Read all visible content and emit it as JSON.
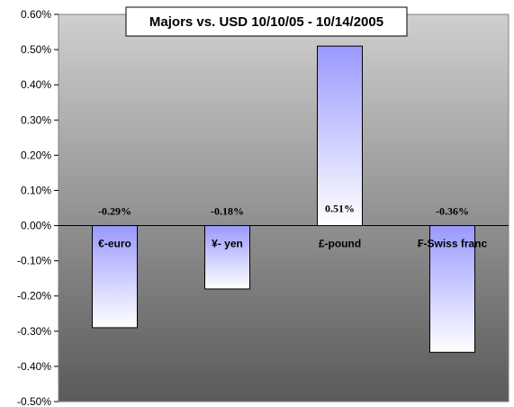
{
  "chart_data": {
    "type": "bar",
    "title": "Majors vs. USD 10/10/05 - 10/14/2005",
    "categories": [
      "€-euro",
      "¥- yen",
      "£-pound",
      "₣-Swiss franc"
    ],
    "values": [
      -0.29,
      -0.18,
      0.51,
      -0.36
    ],
    "data_labels": [
      "-0.29%",
      "-0.18%",
      "0.51%",
      "-0.36%"
    ],
    "ylim": [
      -0.5,
      0.6
    ],
    "yticks": [
      0.6,
      0.5,
      0.4,
      0.3,
      0.2,
      0.1,
      0.0,
      -0.1,
      -0.2,
      -0.3,
      -0.4,
      -0.5
    ],
    "ytick_labels": [
      "0.60%",
      "0.50%",
      "0.40%",
      "0.30%",
      "0.20%",
      "0.10%",
      "0.00%",
      "-0.10%",
      "-0.20%",
      "-0.30%",
      "-0.40%",
      "-0.50%"
    ],
    "xlabel": "",
    "ylabel": "",
    "grid": false,
    "legend": "none",
    "colors": {
      "bar_top": "#9999ff",
      "bar_bottom": "#ffffff",
      "plot_bg_top": "#cfcfcf",
      "plot_bg_bottom": "#5a5a5a"
    }
  }
}
